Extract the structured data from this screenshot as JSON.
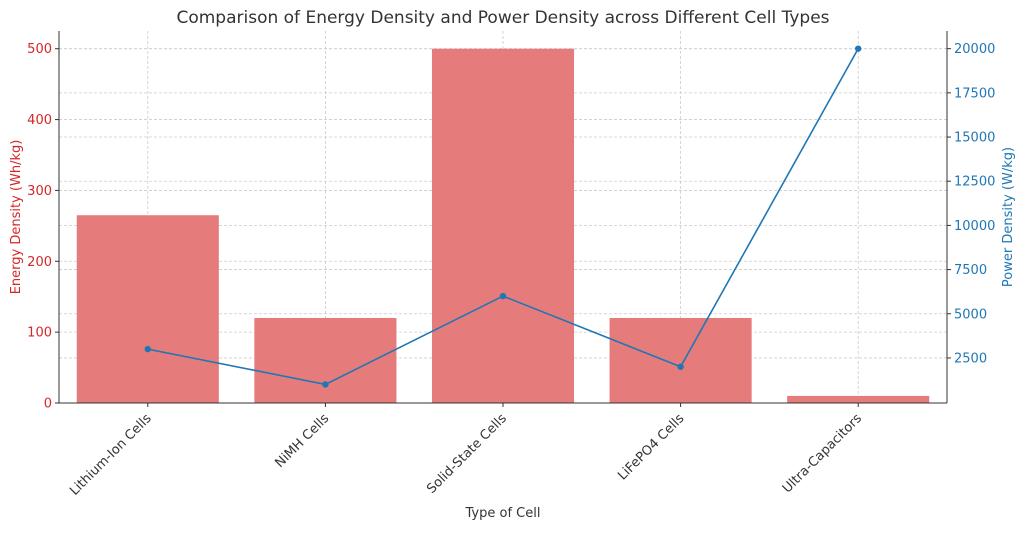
{
  "chart_data": {
    "type": "bar",
    "title": "Comparison of Energy Density and Power Density across Different Cell Types",
    "xlabel": "Type of Cell",
    "ylabel": "Energy Density (Wh/kg)",
    "y2label": "Power Density (W/kg)",
    "categories": [
      "Lithium-Ion Cells",
      "NiMH Cells",
      "Solid-State Cells",
      "LiFePO4 Cells",
      "Ultra-Capacitors"
    ],
    "series": [
      {
        "name": "Energy Density (Wh/kg)",
        "type": "bar",
        "axis": "left",
        "color": "#e57b7b",
        "values": [
          265,
          120,
          500,
          120,
          10
        ]
      },
      {
        "name": "Power Density (W/kg)",
        "type": "line",
        "axis": "right",
        "color": "#1f77b4",
        "values": [
          3000,
          1000,
          6000,
          2000,
          20000
        ]
      }
    ],
    "ylim": [
      0,
      525
    ],
    "y2lim": [
      -50,
      21000
    ],
    "yticks": [
      0,
      100,
      200,
      300,
      400,
      500
    ],
    "y2ticks": [
      2500,
      5000,
      7500,
      10000,
      12500,
      15000,
      17500,
      20000
    ],
    "grid": true,
    "grid_style": "dashed",
    "left_axis_color": "#d62728",
    "right_axis_color": "#1f77b4"
  }
}
